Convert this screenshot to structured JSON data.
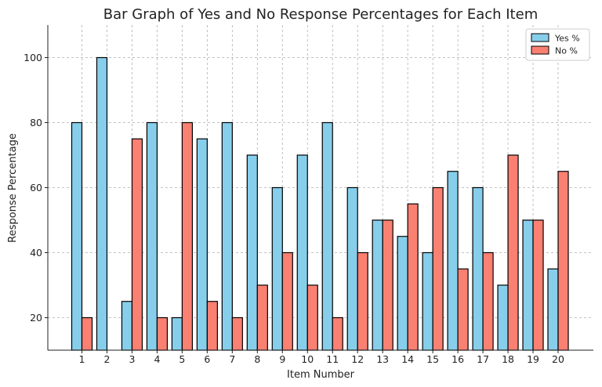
{
  "chart_data": {
    "type": "bar",
    "title": "Bar Graph of Yes and No Response Percentages for Each Item",
    "xlabel": "Item Number",
    "ylabel": "Response Percentage",
    "categories": [
      "1",
      "2",
      "3",
      "4",
      "5",
      "6",
      "7",
      "8",
      "9",
      "10",
      "11",
      "12",
      "13",
      "14",
      "15",
      "16",
      "17",
      "18",
      "19",
      "20"
    ],
    "series": [
      {
        "name": "Yes %",
        "color": "#87ceeb",
        "values": [
          80,
          100,
          25,
          80,
          20,
          75,
          80,
          70,
          60,
          70,
          80,
          60,
          50,
          45,
          40,
          65,
          60,
          30,
          50,
          35
        ]
      },
      {
        "name": "No %",
        "color": "#fa8072",
        "values": [
          20,
          0,
          75,
          20,
          80,
          25,
          20,
          30,
          40,
          30,
          20,
          40,
          50,
          55,
          60,
          35,
          40,
          70,
          50,
          65
        ]
      }
    ],
    "ylim": [
      10,
      110
    ],
    "yticks": [
      20,
      40,
      60,
      80,
      100
    ],
    "grid": true,
    "legend_position": "top-right"
  }
}
